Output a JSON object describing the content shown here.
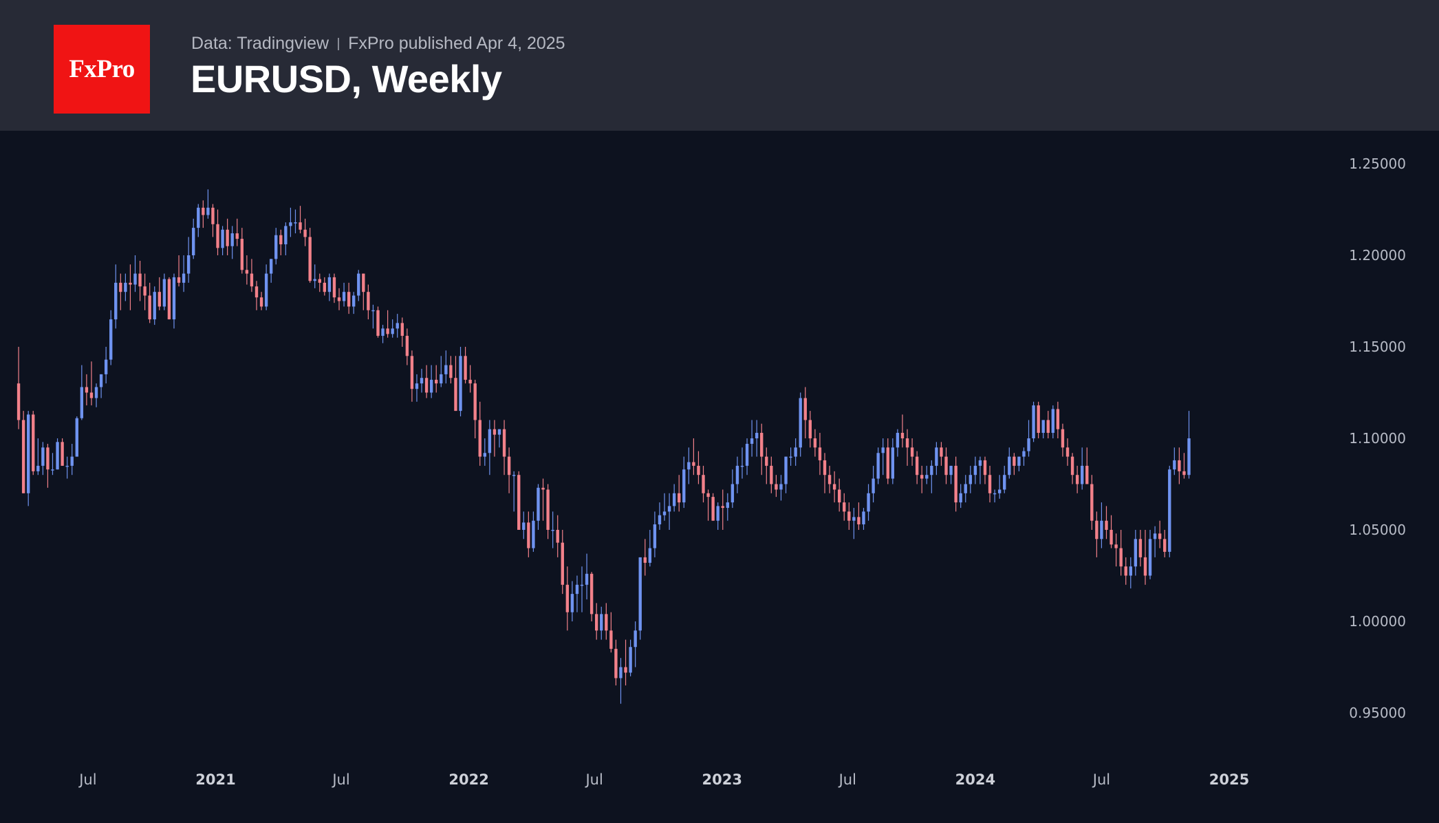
{
  "header": {
    "logo": "FxPro",
    "source": "Data: Tradingview",
    "published": "FxPro published Apr 4, 2025",
    "title": "EURUSD, Weekly"
  },
  "colors": {
    "background": "#0d121f",
    "header_bg": "#272a36",
    "logo_bg": "#f01414",
    "up": "#6f93f0",
    "down": "#f2818a"
  },
  "chart_data": {
    "type": "candlestick",
    "title": "EURUSD, Weekly",
    "interval": "weekly",
    "ylim": [
      0.93,
      1.26
    ],
    "yticks": [
      "1.25000",
      "1.20000",
      "1.15000",
      "1.10000",
      "1.05000",
      "1.00000",
      "0.95000"
    ],
    "ytick_values": [
      1.25,
      1.2,
      1.15,
      1.1,
      1.05,
      1.0,
      0.95
    ],
    "xlim": [
      "2020-03-16",
      "2025-04-28"
    ],
    "xticks": [
      {
        "label": "Jul",
        "date": "2020-07-01",
        "year": false
      },
      {
        "label": "2021",
        "date": "2021-01-01",
        "year": true
      },
      {
        "label": "Jul",
        "date": "2021-07-01",
        "year": false
      },
      {
        "label": "2022",
        "date": "2022-01-01",
        "year": true
      },
      {
        "label": "Jul",
        "date": "2022-07-01",
        "year": false
      },
      {
        "label": "2023",
        "date": "2023-01-01",
        "year": true
      },
      {
        "label": "Jul",
        "date": "2023-07-01",
        "year": false
      },
      {
        "label": "2024",
        "date": "2024-01-01",
        "year": true
      },
      {
        "label": "Jul",
        "date": "2024-07-01",
        "year": false
      },
      {
        "label": "2025",
        "date": "2025-01-01",
        "year": true
      }
    ],
    "grid": false,
    "legend": "none",
    "first_week": "2020-03-23",
    "ohlc": [
      [
        1.13,
        1.15,
        1.105,
        1.11
      ],
      [
        1.11,
        1.115,
        1.07,
        1.07
      ],
      [
        1.07,
        1.115,
        1.063,
        1.113
      ],
      [
        1.113,
        1.115,
        1.08,
        1.082
      ],
      [
        1.082,
        1.1,
        1.08,
        1.085
      ],
      [
        1.085,
        1.098,
        1.08,
        1.095
      ],
      [
        1.095,
        1.097,
        1.073,
        1.083
      ],
      [
        1.083,
        1.092,
        1.08,
        1.083
      ],
      [
        1.083,
        1.1,
        1.083,
        1.098
      ],
      [
        1.098,
        1.1,
        1.085,
        1.085
      ],
      [
        1.085,
        1.09,
        1.078,
        1.085
      ],
      [
        1.085,
        1.097,
        1.08,
        1.09
      ],
      [
        1.09,
        1.112,
        1.09,
        1.111
      ],
      [
        1.111,
        1.14,
        1.11,
        1.128
      ],
      [
        1.128,
        1.135,
        1.118,
        1.125
      ],
      [
        1.125,
        1.142,
        1.118,
        1.122
      ],
      [
        1.122,
        1.13,
        1.117,
        1.128
      ],
      [
        1.128,
        1.135,
        1.122,
        1.135
      ],
      [
        1.135,
        1.15,
        1.13,
        1.143
      ],
      [
        1.143,
        1.17,
        1.14,
        1.165
      ],
      [
        1.165,
        1.195,
        1.16,
        1.185
      ],
      [
        1.185,
        1.19,
        1.17,
        1.18
      ],
      [
        1.18,
        1.19,
        1.175,
        1.185
      ],
      [
        1.185,
        1.195,
        1.17,
        1.184
      ],
      [
        1.184,
        1.2,
        1.18,
        1.19
      ],
      [
        1.19,
        1.197,
        1.175,
        1.183
      ],
      [
        1.183,
        1.19,
        1.17,
        1.178
      ],
      [
        1.178,
        1.185,
        1.163,
        1.165
      ],
      [
        1.165,
        1.183,
        1.162,
        1.18
      ],
      [
        1.18,
        1.188,
        1.17,
        1.172
      ],
      [
        1.172,
        1.19,
        1.17,
        1.187
      ],
      [
        1.187,
        1.188,
        1.165,
        1.165
      ],
      [
        1.165,
        1.19,
        1.16,
        1.188
      ],
      [
        1.188,
        1.2,
        1.183,
        1.185
      ],
      [
        1.185,
        1.2,
        1.18,
        1.19
      ],
      [
        1.19,
        1.21,
        1.185,
        1.2
      ],
      [
        1.2,
        1.22,
        1.198,
        1.215
      ],
      [
        1.215,
        1.228,
        1.21,
        1.226
      ],
      [
        1.226,
        1.23,
        1.215,
        1.222
      ],
      [
        1.222,
        1.236,
        1.22,
        1.226
      ],
      [
        1.226,
        1.228,
        1.21,
        1.217
      ],
      [
        1.217,
        1.225,
        1.2,
        1.204
      ],
      [
        1.204,
        1.216,
        1.2,
        1.214
      ],
      [
        1.214,
        1.22,
        1.2,
        1.205
      ],
      [
        1.205,
        1.216,
        1.198,
        1.212
      ],
      [
        1.212,
        1.22,
        1.205,
        1.209
      ],
      [
        1.209,
        1.215,
        1.19,
        1.192
      ],
      [
        1.192,
        1.2,
        1.184,
        1.19
      ],
      [
        1.19,
        1.198,
        1.18,
        1.183
      ],
      [
        1.183,
        1.186,
        1.17,
        1.177
      ],
      [
        1.177,
        1.18,
        1.17,
        1.172
      ],
      [
        1.172,
        1.195,
        1.17,
        1.19
      ],
      [
        1.19,
        1.198,
        1.185,
        1.198
      ],
      [
        1.198,
        1.215,
        1.195,
        1.211
      ],
      [
        1.211,
        1.214,
        1.2,
        1.206
      ],
      [
        1.206,
        1.218,
        1.2,
        1.216
      ],
      [
        1.216,
        1.226,
        1.21,
        1.218
      ],
      [
        1.218,
        1.225,
        1.212,
        1.218
      ],
      [
        1.218,
        1.227,
        1.212,
        1.214
      ],
      [
        1.214,
        1.22,
        1.205,
        1.21
      ],
      [
        1.21,
        1.215,
        1.185,
        1.186
      ],
      [
        1.186,
        1.195,
        1.182,
        1.187
      ],
      [
        1.187,
        1.19,
        1.18,
        1.185
      ],
      [
        1.185,
        1.188,
        1.178,
        1.18
      ],
      [
        1.18,
        1.19,
        1.175,
        1.188
      ],
      [
        1.188,
        1.19,
        1.174,
        1.177
      ],
      [
        1.177,
        1.182,
        1.17,
        1.175
      ],
      [
        1.175,
        1.185,
        1.172,
        1.18
      ],
      [
        1.18,
        1.185,
        1.168,
        1.172
      ],
      [
        1.172,
        1.18,
        1.168,
        1.178
      ],
      [
        1.178,
        1.192,
        1.175,
        1.19
      ],
      [
        1.19,
        1.19,
        1.17,
        1.18
      ],
      [
        1.18,
        1.184,
        1.165,
        1.17
      ],
      [
        1.17,
        1.173,
        1.16,
        1.17
      ],
      [
        1.17,
        1.172,
        1.155,
        1.156
      ],
      [
        1.156,
        1.162,
        1.152,
        1.16
      ],
      [
        1.16,
        1.17,
        1.155,
        1.157
      ],
      [
        1.157,
        1.165,
        1.155,
        1.16
      ],
      [
        1.16,
        1.168,
        1.155,
        1.163
      ],
      [
        1.163,
        1.166,
        1.15,
        1.156
      ],
      [
        1.156,
        1.16,
        1.14,
        1.145
      ],
      [
        1.145,
        1.148,
        1.12,
        1.127
      ],
      [
        1.127,
        1.135,
        1.12,
        1.13
      ],
      [
        1.13,
        1.138,
        1.125,
        1.133
      ],
      [
        1.133,
        1.14,
        1.122,
        1.125
      ],
      [
        1.125,
        1.14,
        1.122,
        1.132
      ],
      [
        1.132,
        1.14,
        1.125,
        1.13
      ],
      [
        1.13,
        1.145,
        1.128,
        1.135
      ],
      [
        1.135,
        1.148,
        1.13,
        1.14
      ],
      [
        1.14,
        1.145,
        1.13,
        1.133
      ],
      [
        1.133,
        1.145,
        1.115,
        1.115
      ],
      [
        1.115,
        1.15,
        1.112,
        1.145
      ],
      [
        1.145,
        1.15,
        1.13,
        1.132
      ],
      [
        1.132,
        1.14,
        1.125,
        1.13
      ],
      [
        1.13,
        1.132,
        1.1,
        1.11
      ],
      [
        1.11,
        1.12,
        1.085,
        1.09
      ],
      [
        1.09,
        1.1,
        1.085,
        1.092
      ],
      [
        1.092,
        1.11,
        1.08,
        1.105
      ],
      [
        1.105,
        1.11,
        1.09,
        1.102
      ],
      [
        1.102,
        1.105,
        1.095,
        1.105
      ],
      [
        1.105,
        1.11,
        1.08,
        1.09
      ],
      [
        1.09,
        1.095,
        1.07,
        1.08
      ],
      [
        1.08,
        1.082,
        1.06,
        1.08
      ],
      [
        1.08,
        1.082,
        1.05,
        1.05
      ],
      [
        1.05,
        1.06,
        1.045,
        1.054
      ],
      [
        1.054,
        1.06,
        1.035,
        1.04
      ],
      [
        1.04,
        1.06,
        1.038,
        1.055
      ],
      [
        1.055,
        1.075,
        1.05,
        1.073
      ],
      [
        1.073,
        1.078,
        1.055,
        1.072
      ],
      [
        1.072,
        1.075,
        1.045,
        1.05
      ],
      [
        1.05,
        1.06,
        1.04,
        1.05
      ],
      [
        1.05,
        1.058,
        1.035,
        1.043
      ],
      [
        1.043,
        1.05,
        1.015,
        1.02
      ],
      [
        1.02,
        1.03,
        0.995,
        1.005
      ],
      [
        1.005,
        1.022,
        1.0,
        1.015
      ],
      [
        1.015,
        1.025,
        1.005,
        1.02
      ],
      [
        1.02,
        1.03,
        1.005,
        1.02
      ],
      [
        1.02,
        1.037,
        1.012,
        1.026
      ],
      [
        1.026,
        1.027,
        1.0,
        1.004
      ],
      [
        1.004,
        1.01,
        0.99,
        0.995
      ],
      [
        0.995,
        1.008,
        0.99,
        1.004
      ],
      [
        1.004,
        1.01,
        0.99,
        0.995
      ],
      [
        0.995,
        1.005,
        0.983,
        0.985
      ],
      [
        0.985,
        0.99,
        0.965,
        0.969
      ],
      [
        0.969,
        0.98,
        0.955,
        0.975
      ],
      [
        0.975,
        0.99,
        0.965,
        0.972
      ],
      [
        0.972,
        0.99,
        0.97,
        0.986
      ],
      [
        0.986,
        1.0,
        0.975,
        0.995
      ],
      [
        0.995,
        1.035,
        0.99,
        1.035
      ],
      [
        1.035,
        1.045,
        1.025,
        1.032
      ],
      [
        1.032,
        1.05,
        1.03,
        1.04
      ],
      [
        1.04,
        1.06,
        1.035,
        1.053
      ],
      [
        1.053,
        1.065,
        1.05,
        1.058
      ],
      [
        1.058,
        1.07,
        1.055,
        1.06
      ],
      [
        1.06,
        1.07,
        1.05,
        1.063
      ],
      [
        1.063,
        1.075,
        1.06,
        1.07
      ],
      [
        1.07,
        1.08,
        1.06,
        1.065
      ],
      [
        1.065,
        1.09,
        1.062,
        1.083
      ],
      [
        1.083,
        1.095,
        1.075,
        1.087
      ],
      [
        1.087,
        1.1,
        1.08,
        1.085
      ],
      [
        1.085,
        1.093,
        1.075,
        1.08
      ],
      [
        1.08,
        1.085,
        1.065,
        1.07
      ],
      [
        1.07,
        1.072,
        1.055,
        1.068
      ],
      [
        1.068,
        1.07,
        1.055,
        1.055
      ],
      [
        1.055,
        1.065,
        1.05,
        1.063
      ],
      [
        1.063,
        1.072,
        1.05,
        1.062
      ],
      [
        1.062,
        1.07,
        1.055,
        1.065
      ],
      [
        1.065,
        1.083,
        1.062,
        1.075
      ],
      [
        1.075,
        1.09,
        1.07,
        1.085
      ],
      [
        1.085,
        1.095,
        1.078,
        1.085
      ],
      [
        1.085,
        1.1,
        1.08,
        1.097
      ],
      [
        1.097,
        1.11,
        1.09,
        1.1
      ],
      [
        1.1,
        1.11,
        1.09,
        1.103
      ],
      [
        1.103,
        1.108,
        1.08,
        1.09
      ],
      [
        1.09,
        1.095,
        1.075,
        1.085
      ],
      [
        1.085,
        1.09,
        1.07,
        1.075
      ],
      [
        1.075,
        1.08,
        1.068,
        1.072
      ],
      [
        1.072,
        1.08,
        1.066,
        1.075
      ],
      [
        1.075,
        1.09,
        1.07,
        1.09
      ],
      [
        1.09,
        1.095,
        1.085,
        1.09
      ],
      [
        1.09,
        1.1,
        1.085,
        1.095
      ],
      [
        1.095,
        1.125,
        1.09,
        1.122
      ],
      [
        1.122,
        1.128,
        1.1,
        1.11
      ],
      [
        1.11,
        1.115,
        1.095,
        1.1
      ],
      [
        1.1,
        1.105,
        1.09,
        1.095
      ],
      [
        1.095,
        1.103,
        1.08,
        1.088
      ],
      [
        1.088,
        1.092,
        1.07,
        1.08
      ],
      [
        1.08,
        1.085,
        1.07,
        1.075
      ],
      [
        1.075,
        1.082,
        1.065,
        1.072
      ],
      [
        1.072,
        1.078,
        1.06,
        1.065
      ],
      [
        1.065,
        1.07,
        1.055,
        1.06
      ],
      [
        1.06,
        1.065,
        1.05,
        1.055
      ],
      [
        1.055,
        1.062,
        1.045,
        1.057
      ],
      [
        1.057,
        1.065,
        1.05,
        1.053
      ],
      [
        1.053,
        1.062,
        1.05,
        1.06
      ],
      [
        1.06,
        1.075,
        1.055,
        1.07
      ],
      [
        1.07,
        1.085,
        1.065,
        1.078
      ],
      [
        1.078,
        1.095,
        1.075,
        1.092
      ],
      [
        1.092,
        1.1,
        1.08,
        1.095
      ],
      [
        1.095,
        1.1,
        1.075,
        1.078
      ],
      [
        1.078,
        1.1,
        1.075,
        1.095
      ],
      [
        1.095,
        1.105,
        1.09,
        1.103
      ],
      [
        1.103,
        1.113,
        1.095,
        1.1
      ],
      [
        1.1,
        1.105,
        1.085,
        1.095
      ],
      [
        1.095,
        1.1,
        1.085,
        1.09
      ],
      [
        1.09,
        1.093,
        1.075,
        1.08
      ],
      [
        1.08,
        1.085,
        1.07,
        1.078
      ],
      [
        1.078,
        1.085,
        1.075,
        1.08
      ],
      [
        1.08,
        1.088,
        1.07,
        1.085
      ],
      [
        1.085,
        1.098,
        1.08,
        1.095
      ],
      [
        1.095,
        1.098,
        1.085,
        1.09
      ],
      [
        1.09,
        1.095,
        1.075,
        1.08
      ],
      [
        1.08,
        1.085,
        1.075,
        1.085
      ],
      [
        1.085,
        1.09,
        1.06,
        1.065
      ],
      [
        1.065,
        1.075,
        1.062,
        1.07
      ],
      [
        1.07,
        1.08,
        1.065,
        1.075
      ],
      [
        1.075,
        1.085,
        1.07,
        1.08
      ],
      [
        1.08,
        1.09,
        1.075,
        1.085
      ],
      [
        1.085,
        1.09,
        1.075,
        1.088
      ],
      [
        1.088,
        1.09,
        1.075,
        1.08
      ],
      [
        1.08,
        1.085,
        1.065,
        1.07
      ],
      [
        1.07,
        1.072,
        1.065,
        1.07
      ],
      [
        1.07,
        1.08,
        1.067,
        1.072
      ],
      [
        1.072,
        1.085,
        1.07,
        1.08
      ],
      [
        1.08,
        1.095,
        1.078,
        1.09
      ],
      [
        1.09,
        1.092,
        1.08,
        1.085
      ],
      [
        1.085,
        1.09,
        1.082,
        1.09
      ],
      [
        1.09,
        1.095,
        1.085,
        1.093
      ],
      [
        1.093,
        1.11,
        1.09,
        1.1
      ],
      [
        1.1,
        1.12,
        1.098,
        1.118
      ],
      [
        1.118,
        1.12,
        1.1,
        1.103
      ],
      [
        1.103,
        1.11,
        1.1,
        1.11
      ],
      [
        1.11,
        1.115,
        1.1,
        1.103
      ],
      [
        1.103,
        1.118,
        1.1,
        1.116
      ],
      [
        1.116,
        1.12,
        1.1,
        1.105
      ],
      [
        1.105,
        1.108,
        1.09,
        1.095
      ],
      [
        1.095,
        1.1,
        1.085,
        1.09
      ],
      [
        1.09,
        1.092,
        1.075,
        1.08
      ],
      [
        1.08,
        1.085,
        1.07,
        1.075
      ],
      [
        1.075,
        1.095,
        1.072,
        1.085
      ],
      [
        1.085,
        1.095,
        1.075,
        1.075
      ],
      [
        1.075,
        1.08,
        1.05,
        1.055
      ],
      [
        1.055,
        1.06,
        1.035,
        1.045
      ],
      [
        1.045,
        1.065,
        1.04,
        1.055
      ],
      [
        1.055,
        1.063,
        1.045,
        1.05
      ],
      [
        1.05,
        1.058,
        1.04,
        1.042
      ],
      [
        1.042,
        1.048,
        1.03,
        1.04
      ],
      [
        1.04,
        1.05,
        1.025,
        1.03
      ],
      [
        1.03,
        1.035,
        1.02,
        1.025
      ],
      [
        1.025,
        1.035,
        1.018,
        1.03
      ],
      [
        1.03,
        1.05,
        1.025,
        1.045
      ],
      [
        1.045,
        1.05,
        1.03,
        1.035
      ],
      [
        1.035,
        1.05,
        1.02,
        1.025
      ],
      [
        1.025,
        1.05,
        1.023,
        1.045
      ],
      [
        1.045,
        1.052,
        1.035,
        1.048
      ],
      [
        1.048,
        1.055,
        1.04,
        1.045
      ],
      [
        1.045,
        1.05,
        1.035,
        1.038
      ],
      [
        1.038,
        1.085,
        1.035,
        1.083
      ],
      [
        1.083,
        1.095,
        1.08,
        1.088
      ],
      [
        1.088,
        1.095,
        1.075,
        1.082
      ],
      [
        1.082,
        1.092,
        1.078,
        1.08
      ],
      [
        1.08,
        1.115,
        1.078,
        1.1
      ]
    ]
  }
}
